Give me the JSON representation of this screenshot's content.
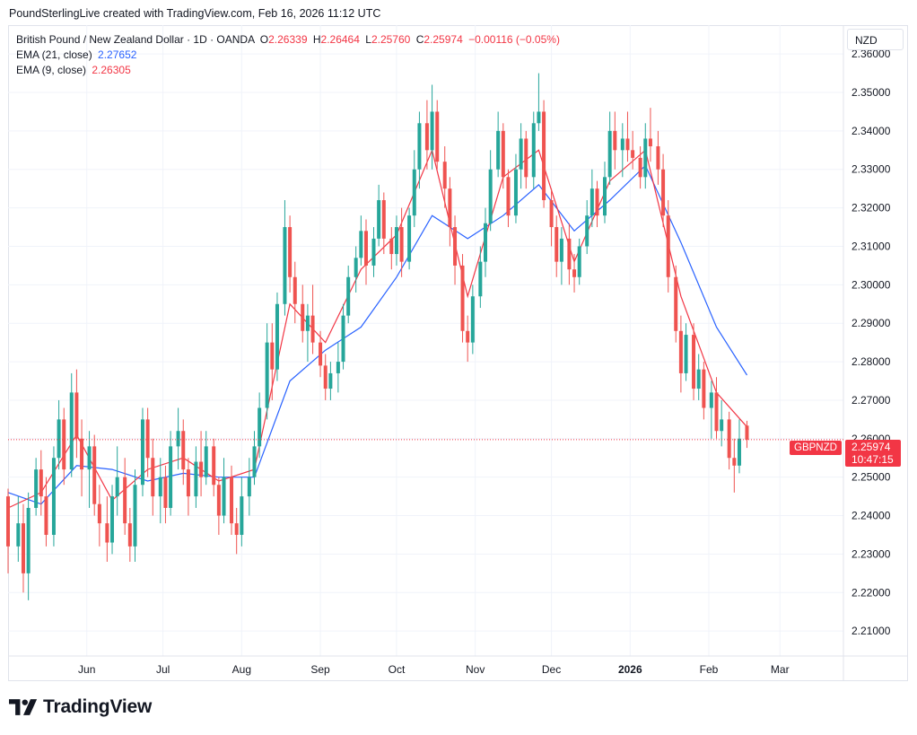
{
  "header": {
    "credit": "PoundSterlingLive created with TradingView.com, Feb 16, 2026 11:12 UTC"
  },
  "legend": {
    "symbol": "British Pound / New Zealand Dollar · 1D · OANDA",
    "ohlc": [
      {
        "key": "O",
        "value": "2.26339"
      },
      {
        "key": "H",
        "value": "2.26464"
      },
      {
        "key": "L",
        "value": "2.25760"
      },
      {
        "key": "C",
        "value": "2.25974"
      }
    ],
    "change": "−0.00116 (−0.05%)",
    "ema21_label": "EMA (21, close)",
    "ema21_value": "2.27652",
    "ema9_label": "EMA (9, close)",
    "ema9_value": "2.26305"
  },
  "currency_button": "NZD",
  "last_price": {
    "symbol": "GBPNZD",
    "price": "2.25974",
    "countdown": "10:47:15"
  },
  "footer": {
    "brand": "TradingView",
    "logo_icon": "tradingview-logo-icon"
  },
  "colors": {
    "up": "#26a69a",
    "down": "#ef5350",
    "ema9": "#f23645",
    "ema21": "#2962ff",
    "grid": "#f0f3fa",
    "price_line": "#f23645"
  },
  "chart_data": {
    "type": "candlestick",
    "title": "British Pound / New Zealand Dollar · 1D · OANDA",
    "x_ticks": [
      "Jun",
      "Jul",
      "Aug",
      "Sep",
      "Oct",
      "Nov",
      "Dec",
      "2026",
      "Feb",
      "Mar"
    ],
    "x_tick_dates": [
      "2025-06-01",
      "2025-07-01",
      "2025-08-01",
      "2025-09-01",
      "2025-10-01",
      "2025-11-01",
      "2025-12-01",
      "2026-01-01",
      "2026-02-01",
      "2026-03-01"
    ],
    "x_range": [
      "2025-05-01",
      "2026-03-26"
    ],
    "y_ticks": [
      "2.36000",
      "2.35000",
      "2.34000",
      "2.33000",
      "2.32000",
      "2.31000",
      "2.30000",
      "2.29000",
      "2.28000",
      "2.27000",
      "2.26000",
      "2.25000",
      "2.24000",
      "2.23000",
      "2.22000",
      "2.21000"
    ],
    "ylim": [
      2.2035,
      2.3675
    ],
    "y_axis_side": "right",
    "grid": true,
    "last_close": 2.25974,
    "bars": [
      [
        "2025-05-01",
        2.245,
        2.247,
        2.225,
        2.232
      ],
      [
        "2025-05-05",
        2.232,
        2.245,
        2.228,
        2.238
      ],
      [
        "2025-05-07",
        2.238,
        2.243,
        2.22,
        2.225
      ],
      [
        "2025-05-09",
        2.225,
        2.246,
        2.218,
        2.242
      ],
      [
        "2025-05-12",
        2.242,
        2.255,
        2.24,
        2.252
      ],
      [
        "2025-05-14",
        2.252,
        2.257,
        2.24,
        2.245
      ],
      [
        "2025-05-16",
        2.245,
        2.25,
        2.232,
        2.235
      ],
      [
        "2025-05-19",
        2.235,
        2.258,
        2.232,
        2.255
      ],
      [
        "2025-05-21",
        2.255,
        2.27,
        2.252,
        2.265
      ],
      [
        "2025-05-23",
        2.265,
        2.268,
        2.248,
        2.252
      ],
      [
        "2025-05-26",
        2.252,
        2.277,
        2.25,
        2.272
      ],
      [
        "2025-05-28",
        2.272,
        2.278,
        2.255,
        2.26
      ],
      [
        "2025-05-30",
        2.26,
        2.265,
        2.245,
        2.252
      ],
      [
        "2025-06-02",
        2.252,
        2.262,
        2.242,
        2.258
      ],
      [
        "2025-06-04",
        2.258,
        2.261,
        2.24,
        2.243
      ],
      [
        "2025-06-06",
        2.243,
        2.248,
        2.232,
        2.238
      ],
      [
        "2025-06-09",
        2.238,
        2.245,
        2.228,
        2.233
      ],
      [
        "2025-06-11",
        2.233,
        2.248,
        2.23,
        2.245
      ],
      [
        "2025-06-13",
        2.245,
        2.258,
        2.24,
        2.25
      ],
      [
        "2025-06-16",
        2.25,
        2.255,
        2.235,
        2.238
      ],
      [
        "2025-06-18",
        2.238,
        2.242,
        2.228,
        2.232
      ],
      [
        "2025-06-20",
        2.232,
        2.252,
        2.228,
        2.248
      ],
      [
        "2025-06-23",
        2.248,
        2.268,
        2.245,
        2.265
      ],
      [
        "2025-06-25",
        2.265,
        2.268,
        2.25,
        2.255
      ],
      [
        "2025-06-27",
        2.255,
        2.26,
        2.24,
        2.245
      ],
      [
        "2025-06-30",
        2.245,
        2.255,
        2.238,
        2.25
      ],
      [
        "2025-07-02",
        2.25,
        2.253,
        2.238,
        2.242
      ],
      [
        "2025-07-04",
        2.242,
        2.262,
        2.24,
        2.258
      ],
      [
        "2025-07-07",
        2.258,
        2.268,
        2.252,
        2.262
      ],
      [
        "2025-07-09",
        2.262,
        2.265,
        2.248,
        2.252
      ],
      [
        "2025-07-11",
        2.252,
        2.255,
        2.24,
        2.245
      ],
      [
        "2025-07-14",
        2.245,
        2.258,
        2.242,
        2.254
      ],
      [
        "2025-07-16",
        2.254,
        2.262,
        2.245,
        2.25
      ],
      [
        "2025-07-18",
        2.25,
        2.262,
        2.248,
        2.258
      ],
      [
        "2025-07-21",
        2.258,
        2.26,
        2.245,
        2.248
      ],
      [
        "2025-07-23",
        2.248,
        2.25,
        2.235,
        2.24
      ],
      [
        "2025-07-25",
        2.24,
        2.255,
        2.238,
        2.25
      ],
      [
        "2025-07-28",
        2.25,
        2.253,
        2.235,
        2.238
      ],
      [
        "2025-07-30",
        2.238,
        2.242,
        2.23,
        2.235
      ],
      [
        "2025-08-01",
        2.235,
        2.25,
        2.232,
        2.245
      ],
      [
        "2025-08-04",
        2.245,
        2.255,
        2.24,
        2.25
      ],
      [
        "2025-08-06",
        2.25,
        2.262,
        2.248,
        2.258
      ],
      [
        "2025-08-08",
        2.258,
        2.272,
        2.255,
        2.268
      ],
      [
        "2025-08-11",
        2.268,
        2.29,
        2.265,
        2.285
      ],
      [
        "2025-08-13",
        2.285,
        2.29,
        2.27,
        2.278
      ],
      [
        "2025-08-15",
        2.278,
        2.298,
        2.275,
        2.295
      ],
      [
        "2025-08-18",
        2.295,
        2.322,
        2.292,
        2.315
      ],
      [
        "2025-08-20",
        2.315,
        2.318,
        2.298,
        2.302
      ],
      [
        "2025-08-22",
        2.302,
        2.306,
        2.29,
        2.295
      ],
      [
        "2025-08-25",
        2.295,
        2.3,
        2.285,
        2.288
      ],
      [
        "2025-08-27",
        2.288,
        2.295,
        2.28,
        2.292
      ],
      [
        "2025-08-29",
        2.292,
        2.3,
        2.282,
        2.285
      ],
      [
        "2025-09-01",
        2.285,
        2.288,
        2.276,
        2.279
      ],
      [
        "2025-09-03",
        2.279,
        2.282,
        2.27,
        2.273
      ],
      [
        "2025-09-05",
        2.273,
        2.28,
        2.27,
        2.277
      ],
      [
        "2025-09-08",
        2.277,
        2.285,
        2.272,
        2.28
      ],
      [
        "2025-09-10",
        2.28,
        2.295,
        2.278,
        2.292
      ],
      [
        "2025-09-12",
        2.292,
        2.305,
        2.29,
        2.302
      ],
      [
        "2025-09-15",
        2.302,
        2.31,
        2.298,
        2.307
      ],
      [
        "2025-09-17",
        2.307,
        2.318,
        2.305,
        2.314
      ],
      [
        "2025-09-19",
        2.314,
        2.317,
        2.3,
        2.305
      ],
      [
        "2025-09-22",
        2.305,
        2.315,
        2.302,
        2.312
      ],
      [
        "2025-09-24",
        2.312,
        2.326,
        2.31,
        2.322
      ],
      [
        "2025-09-26",
        2.322,
        2.324,
        2.308,
        2.312
      ],
      [
        "2025-09-29",
        2.312,
        2.315,
        2.304,
        2.308
      ],
      [
        "2025-10-01",
        2.308,
        2.318,
        2.305,
        2.315
      ],
      [
        "2025-10-03",
        2.315,
        2.32,
        2.302,
        2.306
      ],
      [
        "2025-10-06",
        2.306,
        2.32,
        2.304,
        2.318
      ],
      [
        "2025-10-08",
        2.318,
        2.335,
        2.315,
        2.33
      ],
      [
        "2025-10-10",
        2.33,
        2.345,
        2.325,
        2.342
      ],
      [
        "2025-10-13",
        2.342,
        2.348,
        2.33,
        2.335
      ],
      [
        "2025-10-15",
        2.335,
        2.352,
        2.33,
        2.345
      ],
      [
        "2025-10-17",
        2.345,
        2.348,
        2.33,
        2.332
      ],
      [
        "2025-10-20",
        2.332,
        2.336,
        2.32,
        2.325
      ],
      [
        "2025-10-22",
        2.325,
        2.328,
        2.31,
        2.315
      ],
      [
        "2025-10-24",
        2.315,
        2.318,
        2.3,
        2.305
      ],
      [
        "2025-10-27",
        2.305,
        2.308,
        2.285,
        2.288
      ],
      [
        "2025-10-29",
        2.288,
        2.292,
        2.28,
        2.285
      ],
      [
        "2025-10-31",
        2.285,
        2.3,
        2.282,
        2.297
      ],
      [
        "2025-11-03",
        2.297,
        2.31,
        2.294,
        2.306
      ],
      [
        "2025-11-05",
        2.306,
        2.32,
        2.302,
        2.316
      ],
      [
        "2025-11-07",
        2.316,
        2.335,
        2.314,
        2.33
      ],
      [
        "2025-11-10",
        2.33,
        2.345,
        2.328,
        2.34
      ],
      [
        "2025-11-12",
        2.34,
        2.342,
        2.325,
        2.328
      ],
      [
        "2025-11-14",
        2.328,
        2.33,
        2.315,
        2.318
      ],
      [
        "2025-11-17",
        2.318,
        2.334,
        2.316,
        2.33
      ],
      [
        "2025-11-19",
        2.33,
        2.342,
        2.325,
        2.338
      ],
      [
        "2025-11-21",
        2.338,
        2.34,
        2.325,
        2.328
      ],
      [
        "2025-11-24",
        2.328,
        2.345,
        2.325,
        2.342
      ],
      [
        "2025-11-26",
        2.342,
        2.355,
        2.34,
        2.345
      ],
      [
        "2025-11-28",
        2.345,
        2.348,
        2.32,
        2.322
      ],
      [
        "2025-12-01",
        2.322,
        2.325,
        2.31,
        2.315
      ],
      [
        "2025-12-03",
        2.315,
        2.318,
        2.302,
        2.306
      ],
      [
        "2025-12-05",
        2.306,
        2.315,
        2.3,
        2.312
      ],
      [
        "2025-12-08",
        2.312,
        2.316,
        2.3,
        2.304
      ],
      [
        "2025-12-10",
        2.304,
        2.308,
        2.298,
        2.302
      ],
      [
        "2025-12-12",
        2.302,
        2.312,
        2.3,
        2.31
      ],
      [
        "2025-12-15",
        2.31,
        2.322,
        2.308,
        2.318
      ],
      [
        "2025-12-17",
        2.318,
        2.33,
        2.315,
        2.325
      ],
      [
        "2025-12-19",
        2.325,
        2.327,
        2.315,
        2.318
      ],
      [
        "2025-12-22",
        2.318,
        2.332,
        2.316,
        2.328
      ],
      [
        "2025-12-24",
        2.328,
        2.345,
        2.326,
        2.34
      ],
      [
        "2025-12-26",
        2.34,
        2.345,
        2.33,
        2.335
      ],
      [
        "2025-12-29",
        2.335,
        2.342,
        2.328,
        2.338
      ],
      [
        "2025-12-31",
        2.338,
        2.345,
        2.332,
        2.335
      ],
      [
        "2026-01-02",
        2.335,
        2.34,
        2.33,
        2.333
      ],
      [
        "2026-01-05",
        2.333,
        2.336,
        2.325,
        2.328
      ],
      [
        "2026-01-07",
        2.328,
        2.342,
        2.325,
        2.338
      ],
      [
        "2026-01-09",
        2.338,
        2.346,
        2.332,
        2.336
      ],
      [
        "2026-01-12",
        2.336,
        2.34,
        2.326,
        2.33
      ],
      [
        "2026-01-14",
        2.33,
        2.334,
        2.315,
        2.318
      ],
      [
        "2026-01-16",
        2.318,
        2.322,
        2.298,
        2.302
      ],
      [
        "2026-01-19",
        2.302,
        2.305,
        2.285,
        2.288
      ],
      [
        "2026-01-21",
        2.288,
        2.292,
        2.272,
        2.277
      ],
      [
        "2026-01-23",
        2.277,
        2.29,
        2.275,
        2.287
      ],
      [
        "2026-01-26",
        2.287,
        2.29,
        2.27,
        2.273
      ],
      [
        "2026-01-28",
        2.273,
        2.282,
        2.27,
        2.278
      ],
      [
        "2026-01-30",
        2.278,
        2.28,
        2.265,
        2.268
      ],
      [
        "2026-02-02",
        2.268,
        2.275,
        2.26,
        2.272
      ],
      [
        "2026-02-04",
        2.272,
        2.276,
        2.26,
        2.262
      ],
      [
        "2026-02-06",
        2.262,
        2.27,
        2.258,
        2.265
      ],
      [
        "2026-02-09",
        2.265,
        2.267,
        2.252,
        2.255
      ],
      [
        "2026-02-11",
        2.255,
        2.26,
        2.246,
        2.253
      ],
      [
        "2026-02-13",
        2.253,
        2.265,
        2.251,
        2.26
      ],
      [
        "2026-02-16",
        2.26339,
        2.26464,
        2.2576,
        2.25974
      ]
    ],
    "series": [
      {
        "name": "EMA (21, close)",
        "color": "#2962ff",
        "points": [
          [
            "2025-05-01",
            2.246
          ],
          [
            "2025-05-14",
            2.243
          ],
          [
            "2025-05-28",
            2.253
          ],
          [
            "2025-06-11",
            2.252
          ],
          [
            "2025-06-25",
            2.249
          ],
          [
            "2025-07-09",
            2.251
          ],
          [
            "2025-07-23",
            2.25
          ],
          [
            "2025-08-06",
            2.25
          ],
          [
            "2025-08-20",
            2.275
          ],
          [
            "2025-09-03",
            2.283
          ],
          [
            "2025-09-17",
            2.289
          ],
          [
            "2025-10-01",
            2.302
          ],
          [
            "2025-10-15",
            2.318
          ],
          [
            "2025-10-29",
            2.312
          ],
          [
            "2025-11-12",
            2.318
          ],
          [
            "2025-11-26",
            2.326
          ],
          [
            "2025-12-10",
            2.314
          ],
          [
            "2025-12-24",
            2.322
          ],
          [
            "2026-01-07",
            2.331
          ],
          [
            "2026-01-21",
            2.311
          ],
          [
            "2026-02-04",
            2.289
          ],
          [
            "2026-02-16",
            2.27652
          ]
        ]
      },
      {
        "name": "EMA (9, close)",
        "color": "#f23645",
        "points": [
          [
            "2025-05-01",
            2.242
          ],
          [
            "2025-05-14",
            2.246
          ],
          [
            "2025-05-28",
            2.261
          ],
          [
            "2025-06-11",
            2.244
          ],
          [
            "2025-06-25",
            2.252
          ],
          [
            "2025-07-09",
            2.255
          ],
          [
            "2025-07-23",
            2.249
          ],
          [
            "2025-08-06",
            2.252
          ],
          [
            "2025-08-20",
            2.295
          ],
          [
            "2025-09-03",
            2.285
          ],
          [
            "2025-09-17",
            2.304
          ],
          [
            "2025-10-01",
            2.313
          ],
          [
            "2025-10-15",
            2.335
          ],
          [
            "2025-10-29",
            2.297
          ],
          [
            "2025-11-12",
            2.328
          ],
          [
            "2025-11-26",
            2.335
          ],
          [
            "2025-12-10",
            2.306
          ],
          [
            "2025-12-24",
            2.327
          ],
          [
            "2026-01-07",
            2.335
          ],
          [
            "2026-01-21",
            2.297
          ],
          [
            "2026-02-04",
            2.272
          ],
          [
            "2026-02-16",
            2.26305
          ]
        ]
      }
    ]
  }
}
